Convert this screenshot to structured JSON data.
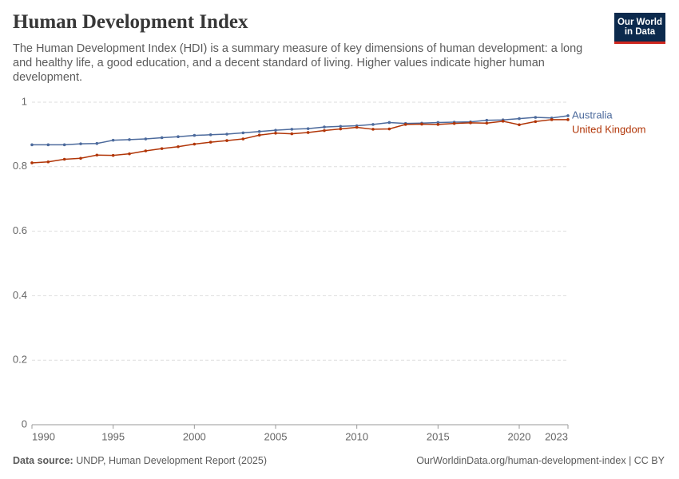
{
  "header": {
    "title": "Human Development Index",
    "subtitle": "The Human Development Index (HDI) is a summary measure of key dimensions of human development: a long and healthy life, a good education, and a decent standard of living. Higher values indicate higher human development.",
    "logo": [
      "Our World",
      "in Data"
    ]
  },
  "chart_data": {
    "type": "line",
    "x": [
      1990,
      1991,
      1992,
      1993,
      1994,
      1995,
      1996,
      1997,
      1998,
      1999,
      2000,
      2001,
      2002,
      2003,
      2004,
      2005,
      2006,
      2007,
      2008,
      2009,
      2010,
      2011,
      2012,
      2013,
      2014,
      2015,
      2016,
      2017,
      2018,
      2019,
      2020,
      2021,
      2022,
      2023
    ],
    "series": [
      {
        "name": "Australia",
        "color": "#4c6a9c",
        "values": [
          0.868,
          0.868,
          0.868,
          0.871,
          0.872,
          0.882,
          0.884,
          0.886,
          0.89,
          0.893,
          0.897,
          0.899,
          0.901,
          0.905,
          0.909,
          0.913,
          0.916,
          0.918,
          0.923,
          0.925,
          0.927,
          0.931,
          0.937,
          0.934,
          0.935,
          0.937,
          0.938,
          0.939,
          0.944,
          0.945,
          0.949,
          0.953,
          0.951,
          0.958
        ]
      },
      {
        "name": "United Kingdom",
        "color": "#b13507",
        "values": [
          0.812,
          0.815,
          0.823,
          0.826,
          0.836,
          0.835,
          0.84,
          0.849,
          0.856,
          0.862,
          0.87,
          0.876,
          0.881,
          0.886,
          0.898,
          0.904,
          0.902,
          0.906,
          0.912,
          0.917,
          0.922,
          0.916,
          0.917,
          0.931,
          0.932,
          0.931,
          0.934,
          0.936,
          0.935,
          0.941,
          0.93,
          0.94,
          0.946,
          0.946
        ]
      }
    ],
    "xlim": [
      1990,
      2023
    ],
    "xticks": [
      1990,
      1995,
      2000,
      2005,
      2010,
      2015,
      2020,
      2023
    ],
    "ylim": [
      0,
      1
    ],
    "yticks": [
      0,
      0.2,
      0.4,
      0.6,
      0.8,
      1
    ],
    "grid": true
  },
  "footer": {
    "source_label": "Data source:",
    "source": "UNDP, Human Development Report (2025)",
    "url": "OurWorldinData.org/human-development-index | CC BY"
  }
}
